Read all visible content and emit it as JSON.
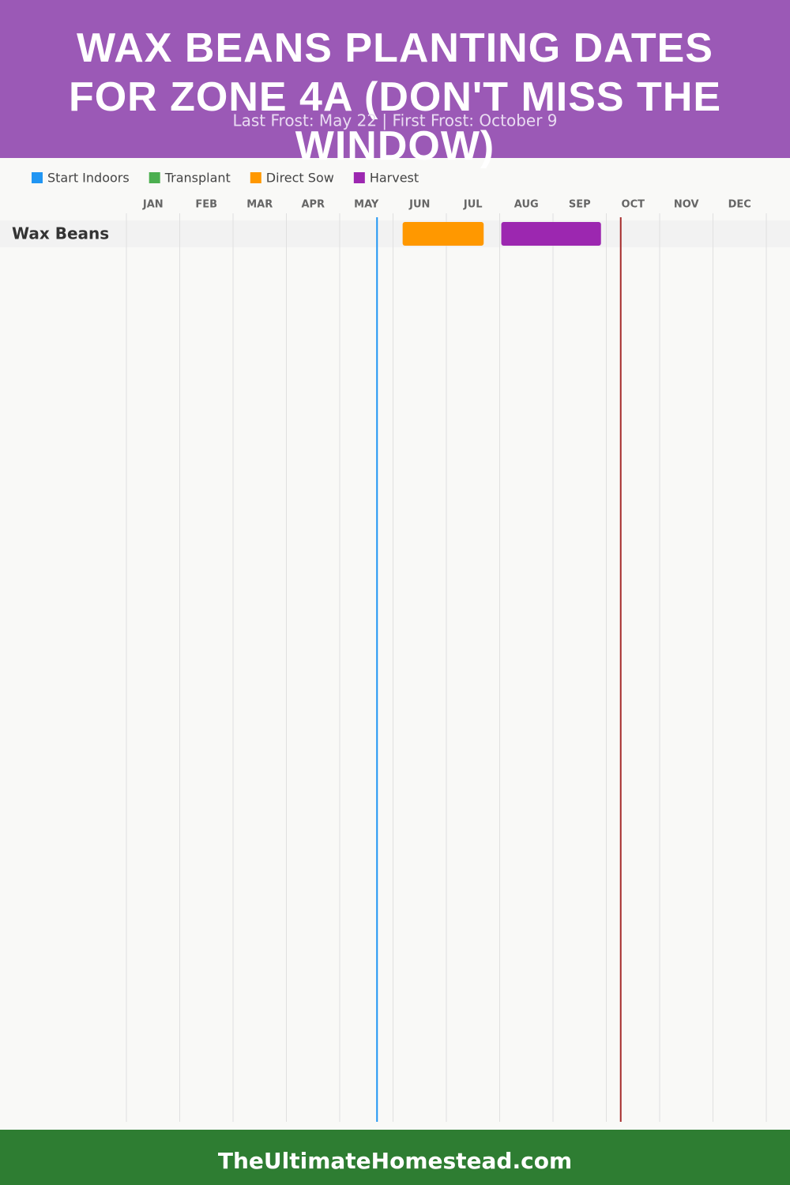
{
  "chart_data": {
    "type": "gantt",
    "title": "WAX BEANS PLANTING DATES FOR ZONE 4A (DON'T MISS THE WINDOW)",
    "subtitle": "Last Frost: May 22 | First Frost: October 9",
    "footer": "TheUltimateHomestead.com",
    "months": [
      "JAN",
      "FEB",
      "MAR",
      "APR",
      "MAY",
      "JUN",
      "JUL",
      "AUG",
      "SEP",
      "OCT",
      "NOV",
      "DEC"
    ],
    "xlim": [
      0,
      12
    ],
    "rows": [
      "Wax Beans"
    ],
    "series": [
      {
        "name": "Start Indoors",
        "color": "#2196f3",
        "start": [
          null
        ],
        "end": [
          null
        ]
      },
      {
        "name": "Transplant",
        "color": "#4caf50",
        "start": [
          null
        ],
        "end": [
          null
        ]
      },
      {
        "name": "Direct Sow",
        "color": "#ff9800",
        "start": [
          5.18
        ],
        "end": [
          6.7
        ]
      },
      {
        "name": "Harvest",
        "color": "#9c27b0",
        "start": [
          7.03
        ],
        "end": [
          8.9
        ]
      }
    ],
    "frost_lines": [
      {
        "value": 4.7,
        "color": "#2196f3"
      },
      {
        "value": 9.27,
        "color": "#a52a2a"
      }
    ],
    "grid": true
  }
}
